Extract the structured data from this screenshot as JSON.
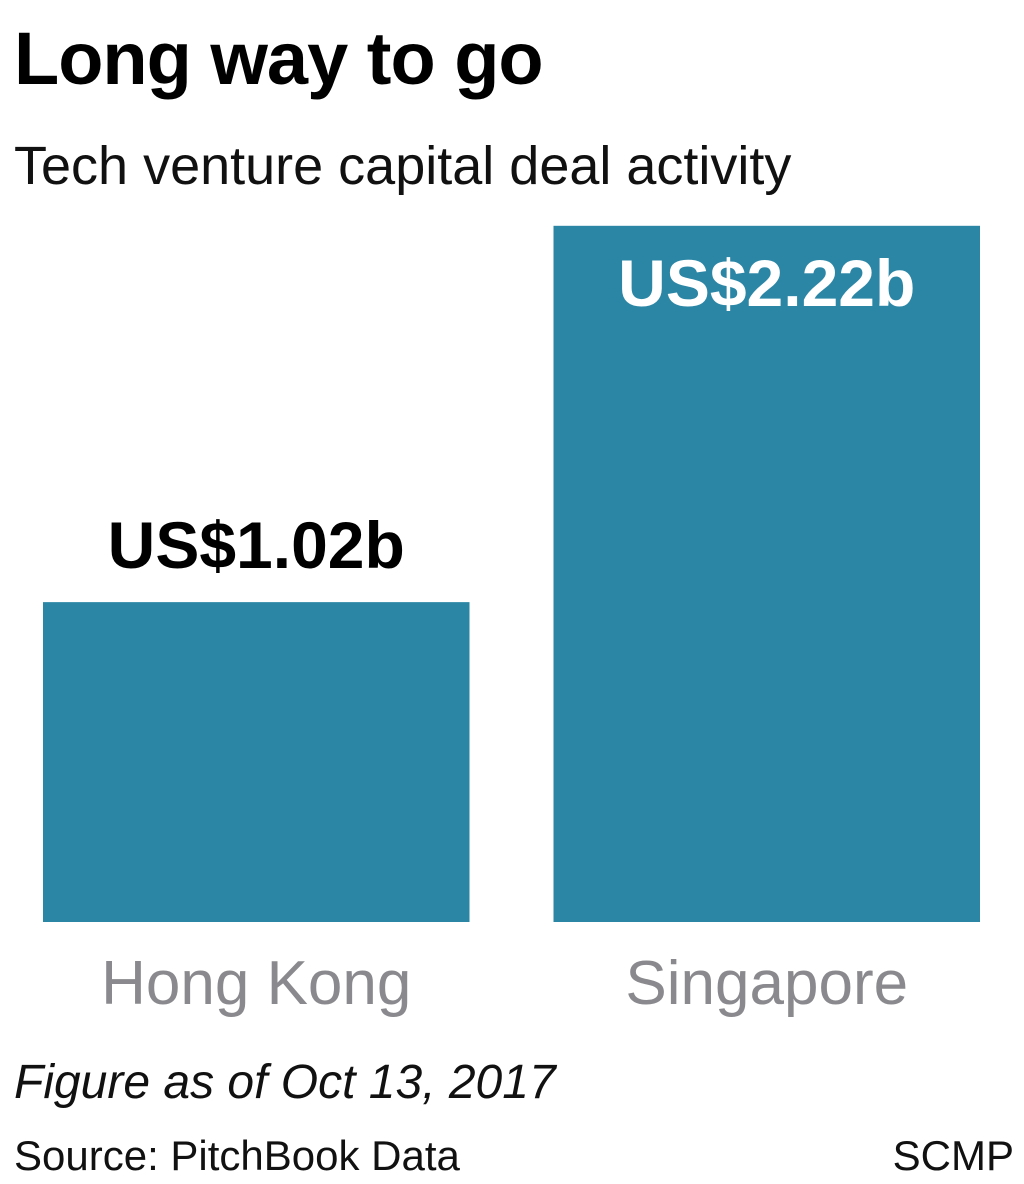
{
  "chart_data": {
    "type": "bar",
    "title": "Long way to go",
    "subtitle": "Tech venture capital deal activity",
    "categories": [
      "Hong Kong",
      "Singapore"
    ],
    "values": [
      1.02,
      2.22
    ],
    "value_labels": [
      "US$1.02b",
      "US$2.22b"
    ],
    "color": "#2b86a6",
    "note": "Figure as of Oct 13, 2017",
    "source": "Source: PitchBook Data",
    "credit": "SCMP"
  }
}
